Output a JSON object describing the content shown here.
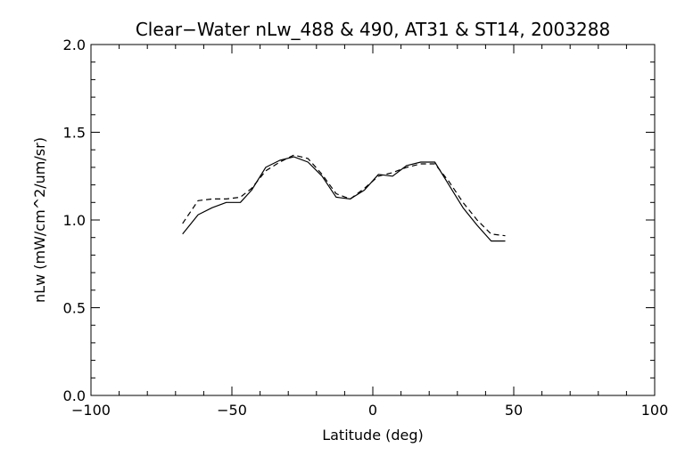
{
  "chart_data": {
    "type": "line",
    "title": "Clear−Water nLw_488 & 490, AT31 & ST14, 2003288",
    "xlabel": "Latitude (deg)",
    "ylabel": "nLw (mW/cm^2/um/sr)",
    "xlim": [
      -100,
      100
    ],
    "ylim": [
      0.0,
      2.0
    ],
    "x_ticks": [
      -100,
      -50,
      0,
      50,
      100
    ],
    "x_tick_labels": [
      "−100",
      "−50",
      "0",
      "50",
      "100"
    ],
    "y_ticks": [
      0.0,
      0.5,
      1.0,
      1.5,
      2.0
    ],
    "y_tick_labels": [
      "0.0",
      "0.5",
      "1.0",
      "1.5",
      "2.0"
    ],
    "grid": false,
    "series": [
      {
        "style": "solid",
        "x": [
          -67.5,
          -62,
          -57,
          -52,
          -47,
          -43,
          -38,
          -33,
          -28,
          -23,
          -18,
          -13,
          -8,
          -3,
          2,
          7,
          12,
          17,
          22,
          27,
          32,
          37,
          42,
          47
        ],
        "y": [
          0.92,
          1.03,
          1.07,
          1.1,
          1.1,
          1.17,
          1.3,
          1.34,
          1.36,
          1.33,
          1.25,
          1.13,
          1.12,
          1.17,
          1.26,
          1.25,
          1.31,
          1.33,
          1.33,
          1.2,
          1.07,
          0.97,
          0.88,
          0.88
        ]
      },
      {
        "style": "dashed",
        "x": [
          -67.5,
          -62,
          -57,
          -52,
          -47,
          -43,
          -38,
          -33,
          -28,
          -23,
          -18,
          -13,
          -8,
          -3,
          2,
          7,
          12,
          17,
          22,
          27,
          32,
          37,
          42,
          47
        ],
        "y": [
          0.98,
          1.11,
          1.12,
          1.12,
          1.13,
          1.18,
          1.28,
          1.33,
          1.37,
          1.35,
          1.26,
          1.15,
          1.12,
          1.18,
          1.25,
          1.27,
          1.3,
          1.32,
          1.32,
          1.22,
          1.1,
          1.0,
          0.92,
          0.91
        ]
      }
    ]
  }
}
